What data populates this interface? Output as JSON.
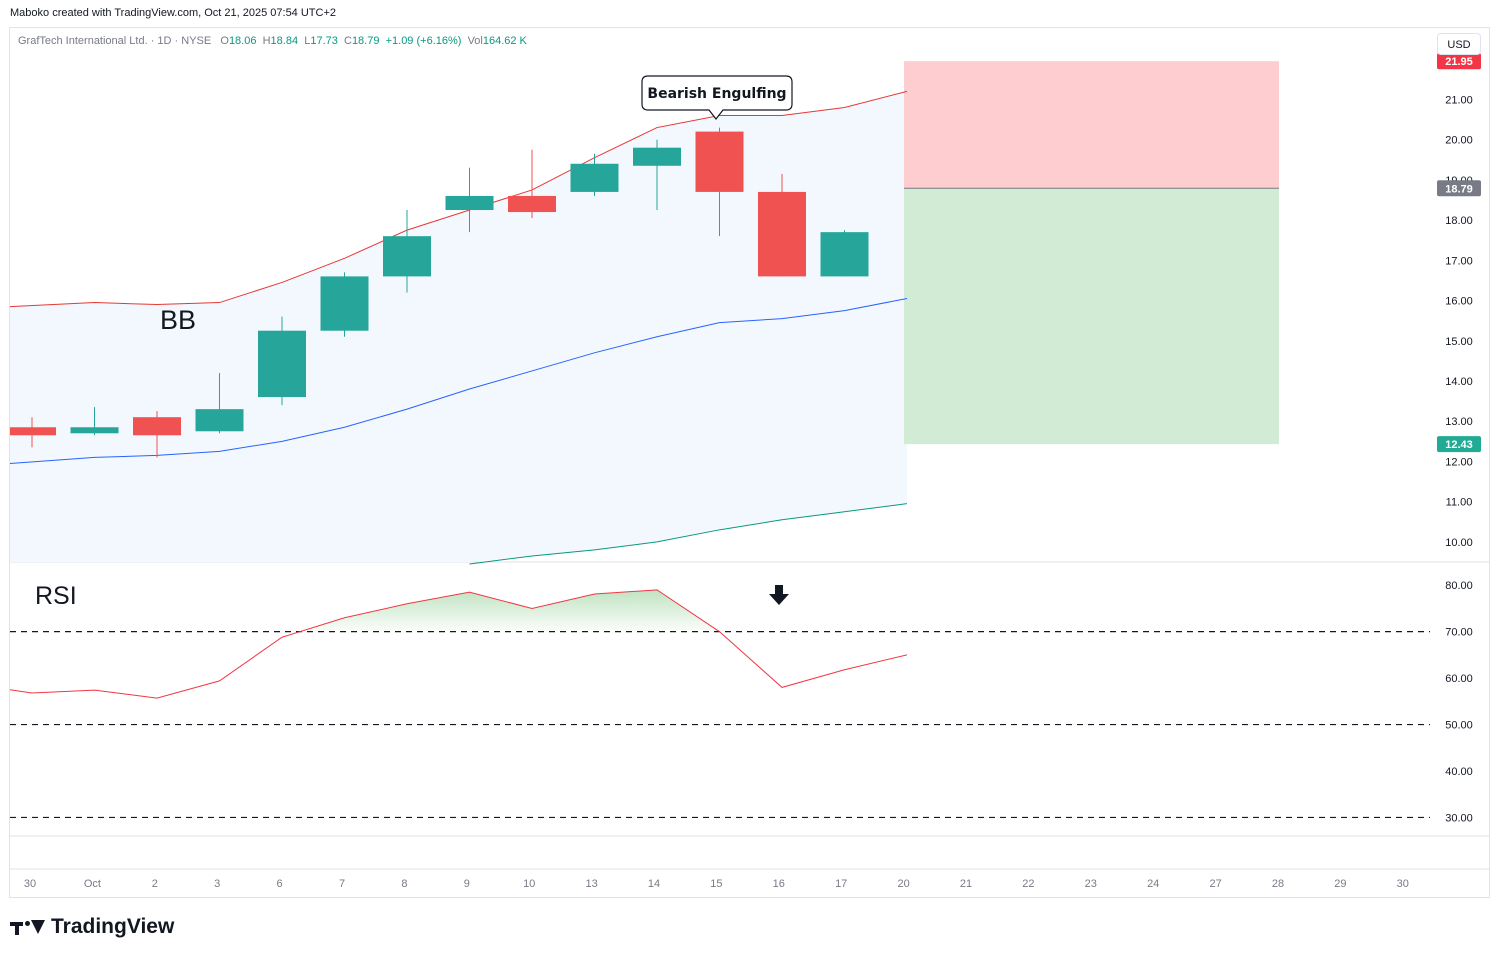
{
  "credit": "Maboko created with TradingView.com, Oct 21, 2025 07:54 UTC+2",
  "legend": {
    "symbol": "GrafTech International Ltd. · 1D · NYSE",
    "o_label": "O",
    "o_value": "18.06",
    "h_label": "H",
    "h_value": "18.84",
    "l_label": "L",
    "l_value": "17.73",
    "c_label": "C",
    "c_value": "18.79",
    "change": "+1.09 (+6.16%)",
    "vol_label": "Vol",
    "vol_value": "164.62 K"
  },
  "currency": "USD",
  "brand": "TradingView",
  "colors": {
    "up": "#26a69a",
    "down": "#f05252",
    "bb_band": "#e53935",
    "bb_basis": "#2962ff",
    "bb_lower": "#089981",
    "bb_fill": "#f2f8fd",
    "stop_zone": "#fdcdd0",
    "target_zone": "#d2ebd4",
    "rsi_line": "#f23645"
  },
  "chart_data": {
    "type": "candlestick",
    "title": "GrafTech International Ltd. · 1D · NYSE",
    "x_ticks": [
      "30",
      "Oct",
      "2",
      "3",
      "6",
      "7",
      "8",
      "9",
      "10",
      "13",
      "14",
      "15",
      "16",
      "17",
      "20",
      "21",
      "22",
      "23",
      "24",
      "27",
      "28",
      "29",
      "30"
    ],
    "price_axis": {
      "ylim": [
        9.5,
        22.8
      ],
      "ticks": [
        "10.00",
        "11.00",
        "12.00",
        "13.00",
        "14.00",
        "15.00",
        "16.00",
        "17.00",
        "18.00",
        "19.00",
        "20.00",
        "21.00"
      ]
    },
    "candles": [
      {
        "date": "Oct 1",
        "open": 12.85,
        "high": 13.1,
        "low": 12.35,
        "close": 12.65
      },
      {
        "date": "Oct 2",
        "open": 12.7,
        "high": 13.35,
        "low": 12.65,
        "close": 12.85
      },
      {
        "date": "Oct 3",
        "open": 13.1,
        "high": 13.25,
        "low": 12.1,
        "close": 12.65
      },
      {
        "date": "Oct 6",
        "open": 12.75,
        "high": 14.2,
        "low": 12.7,
        "close": 13.3
      },
      {
        "date": "Oct 7",
        "open": 13.6,
        "high": 15.6,
        "low": 13.4,
        "close": 15.25
      },
      {
        "date": "Oct 8",
        "open": 15.25,
        "high": 16.7,
        "low": 15.1,
        "close": 16.6
      },
      {
        "date": "Oct 9",
        "open": 16.6,
        "high": 18.25,
        "low": 16.2,
        "close": 17.6
      },
      {
        "date": "Oct 10",
        "open": 18.25,
        "high": 19.3,
        "low": 17.7,
        "close": 18.6
      },
      {
        "date": "Oct 13",
        "open": 18.6,
        "high": 19.75,
        "low": 18.05,
        "close": 18.2
      },
      {
        "date": "Oct 14",
        "open": 18.7,
        "high": 19.65,
        "low": 18.6,
        "close": 19.4
      },
      {
        "date": "Oct 15",
        "open": 19.35,
        "high": 20.0,
        "low": 18.25,
        "close": 19.8
      },
      {
        "date": "Oct 16",
        "open": 20.2,
        "high": 20.3,
        "low": 17.6,
        "close": 18.7
      },
      {
        "date": "Oct 17",
        "open": 18.7,
        "high": 19.15,
        "low": 16.6,
        "close": 16.6
      },
      {
        "date": "Oct 20",
        "open": 16.6,
        "high": 17.75,
        "low": 16.6,
        "close": 17.7
      }
    ],
    "bollinger": {
      "upper": [
        15.85,
        15.95,
        15.9,
        15.95,
        16.45,
        17.05,
        17.75,
        18.25,
        18.75,
        19.55,
        20.3,
        20.6,
        20.6,
        20.8,
        21.2
      ],
      "basis": [
        11.95,
        12.1,
        12.15,
        12.25,
        12.5,
        12.85,
        13.3,
        13.8,
        14.25,
        14.7,
        15.1,
        15.45,
        15.55,
        15.75,
        16.05
      ],
      "lower": [
        null,
        null,
        null,
        null,
        null,
        null,
        null,
        9.45,
        9.65,
        9.8,
        10.0,
        10.3,
        10.55,
        10.75,
        10.95
      ]
    },
    "position": {
      "entry": 18.79,
      "stop": 21.95,
      "target": 12.43,
      "entry_label": "18.79",
      "stop_label": "21.95",
      "target_label": "12.43"
    },
    "rsi": {
      "label": "RSI",
      "ylim": [
        26,
        85
      ],
      "ticks": [
        "30.00",
        "40.00",
        "50.00",
        "60.00",
        "70.00",
        "80.00"
      ],
      "levels": [
        70,
        50,
        30
      ],
      "values": [
        57.5,
        56.8,
        57.4,
        55.7,
        59.4,
        68.8,
        73.0,
        76.0,
        78.5,
        75.0,
        78.1,
        79.0,
        70.0,
        58.0,
        61.8,
        65.0
      ]
    },
    "annotations": {
      "pattern_label": "Bearish Engulfing",
      "bb_label": "BB"
    }
  }
}
